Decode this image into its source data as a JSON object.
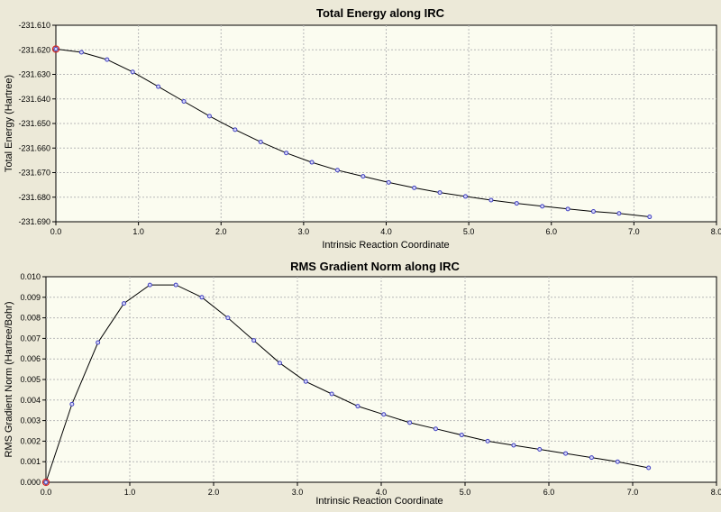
{
  "chart_data": [
    {
      "type": "line",
      "title": "Total Energy along IRC",
      "xlabel": "Intrinsic Reaction Coordinate",
      "ylabel": "Total Energy (Hartree)",
      "xlim": [
        0.0,
        8.0
      ],
      "ylim": [
        -231.69,
        -231.61
      ],
      "x_ticks": [
        0.0,
        1.0,
        2.0,
        3.0,
        4.0,
        5.0,
        6.0,
        7.0,
        8.0
      ],
      "x_tick_labels": [
        "0.0",
        "1.0",
        "2.0",
        "3.0",
        "4.0",
        "5.0",
        "6.0",
        "7.0",
        "8.0"
      ],
      "y_ticks": [
        -231.61,
        -231.62,
        -231.63,
        -231.64,
        -231.65,
        -231.66,
        -231.67,
        -231.68,
        -231.69
      ],
      "y_tick_labels": [
        "-231.610",
        "-231.620",
        "-231.630",
        "-231.640",
        "-231.650",
        "-231.660",
        "-231.670",
        "-231.680",
        "-231.690"
      ],
      "grid": true,
      "highlighted_index": 0,
      "x": [
        0.0,
        0.31,
        0.62,
        0.93,
        1.24,
        1.55,
        1.86,
        2.17,
        2.48,
        2.79,
        3.1,
        3.41,
        3.72,
        4.03,
        4.34,
        4.65,
        4.96,
        5.27,
        5.58,
        5.89,
        6.2,
        6.51,
        6.82,
        7.19
      ],
      "y": [
        -231.6197,
        -231.621,
        -231.624,
        -231.629,
        -231.635,
        -231.641,
        -231.647,
        -231.6525,
        -231.6575,
        -231.662,
        -231.6658,
        -231.669,
        -231.6715,
        -231.674,
        -231.6762,
        -231.6781,
        -231.6797,
        -231.6812,
        -231.6825,
        -231.6837,
        -231.6848,
        -231.6858,
        -231.6866,
        -231.688
      ]
    },
    {
      "type": "line",
      "title": "RMS Gradient Norm along IRC",
      "xlabel": "Intrinsic Reaction Coordinate",
      "ylabel": "RMS Gradient Norm (Hartree/Bohr)",
      "xlim": [
        0.0,
        8.0
      ],
      "ylim": [
        0.0,
        0.01
      ],
      "x_ticks": [
        0.0,
        1.0,
        2.0,
        3.0,
        4.0,
        5.0,
        6.0,
        7.0,
        8.0
      ],
      "x_tick_labels": [
        "0.0",
        "1.0",
        "2.0",
        "3.0",
        "4.0",
        "5.0",
        "6.0",
        "7.0",
        "8.0"
      ],
      "y_ticks": [
        0.01,
        0.009,
        0.008,
        0.007,
        0.006,
        0.005,
        0.004,
        0.003,
        0.002,
        0.001,
        0.0
      ],
      "y_tick_labels": [
        "0.010",
        "0.009",
        "0.008",
        "0.007",
        "0.006",
        "0.005",
        "0.004",
        "0.003",
        "0.002",
        "0.001",
        "0.000"
      ],
      "grid": true,
      "highlighted_index": 0,
      "x": [
        0.0,
        0.31,
        0.62,
        0.93,
        1.24,
        1.55,
        1.86,
        2.17,
        2.48,
        2.79,
        3.1,
        3.41,
        3.72,
        4.03,
        4.34,
        4.65,
        4.96,
        5.27,
        5.58,
        5.89,
        6.2,
        6.51,
        6.82,
        7.19
      ],
      "y": [
        0.0,
        0.0038,
        0.0068,
        0.0087,
        0.0096,
        0.0096,
        0.009,
        0.008,
        0.0069,
        0.0058,
        0.0049,
        0.0043,
        0.0037,
        0.0033,
        0.0029,
        0.0026,
        0.0023,
        0.002,
        0.0018,
        0.0016,
        0.0014,
        0.0012,
        0.001,
        0.0007
      ]
    }
  ]
}
